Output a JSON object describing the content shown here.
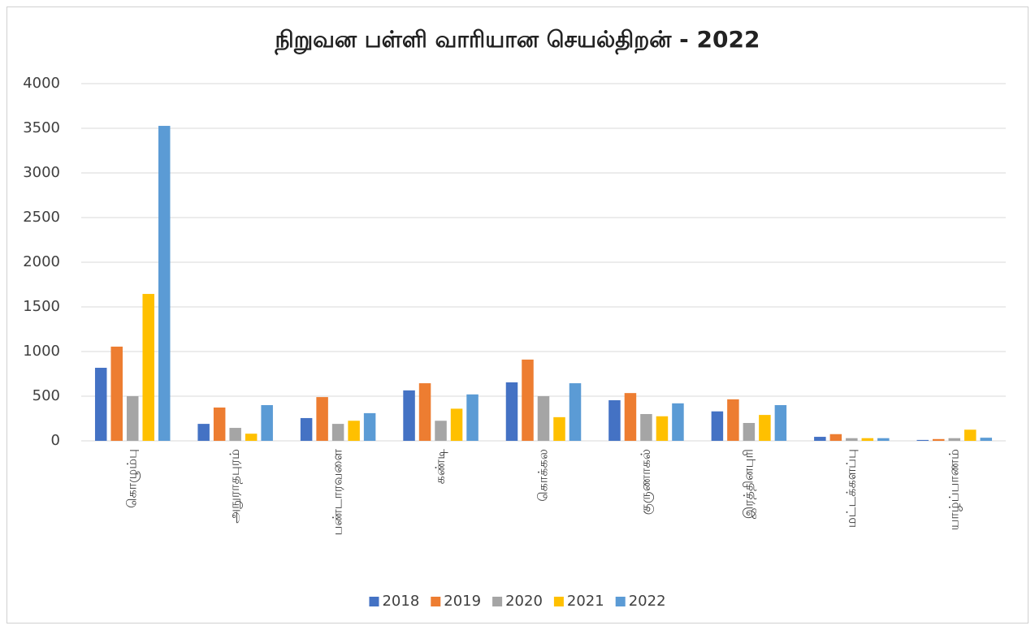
{
  "chart_data": {
    "type": "bar",
    "title": "நிறுவன பள்ளி வாரியான செயல்திறன் - 2022",
    "categories": [
      "கொழும்பு",
      "அநுராதபுரம்",
      "பண்டாரவளை",
      "கண்டி",
      "கொக்கல",
      "குருணாகல்",
      "இரத்தினபுரி",
      "மட்டக்களப்பு",
      "யாழ்ப்பாணம்"
    ],
    "series": [
      {
        "name": "2018",
        "color": "#4472c4",
        "values": [
          818,
          190,
          255,
          565,
          655,
          455,
          330,
          45,
          10
        ]
      },
      {
        "name": "2019",
        "color": "#ed7d31",
        "values": [
          1055,
          373,
          490,
          645,
          910,
          535,
          465,
          75,
          20
        ]
      },
      {
        "name": "2020",
        "color": "#a5a5a5",
        "values": [
          500,
          145,
          190,
          225,
          500,
          300,
          200,
          30,
          30
        ]
      },
      {
        "name": "2021",
        "color": "#ffc000",
        "values": [
          1645,
          80,
          225,
          360,
          265,
          275,
          290,
          30,
          125
        ]
      },
      {
        "name": "2022",
        "color": "#5b9bd5",
        "values": [
          3527,
          400,
          310,
          520,
          645,
          420,
          400,
          30,
          35
        ]
      }
    ],
    "ylim": [
      0,
      4000
    ],
    "yticks": [
      0,
      500,
      1000,
      1500,
      2000,
      2500,
      3000,
      3500,
      4000
    ],
    "grid": true,
    "legend": "bottom"
  }
}
